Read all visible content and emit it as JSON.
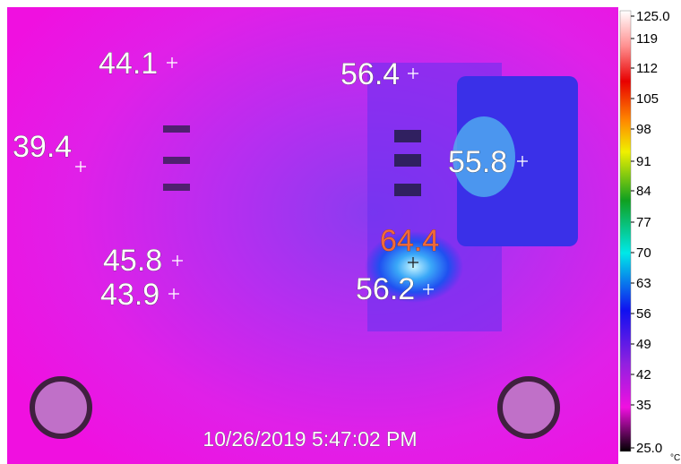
{
  "readings": [
    {
      "label": "44.1"
    },
    {
      "label": "56.4"
    },
    {
      "label": "39.4"
    },
    {
      "label": "55.8"
    },
    {
      "label": "64.4"
    },
    {
      "label": "45.8"
    },
    {
      "label": "43.9"
    },
    {
      "label": "56.2"
    }
  ],
  "scale": {
    "ticks": [
      "125.0",
      "119",
      "112",
      "105",
      "98",
      "91",
      "84",
      "77",
      "70",
      "63",
      "56",
      "49",
      "42",
      "35",
      "25.0"
    ],
    "unit": "°C"
  },
  "timestamp": "10/26/2019 5:47:02 PM"
}
